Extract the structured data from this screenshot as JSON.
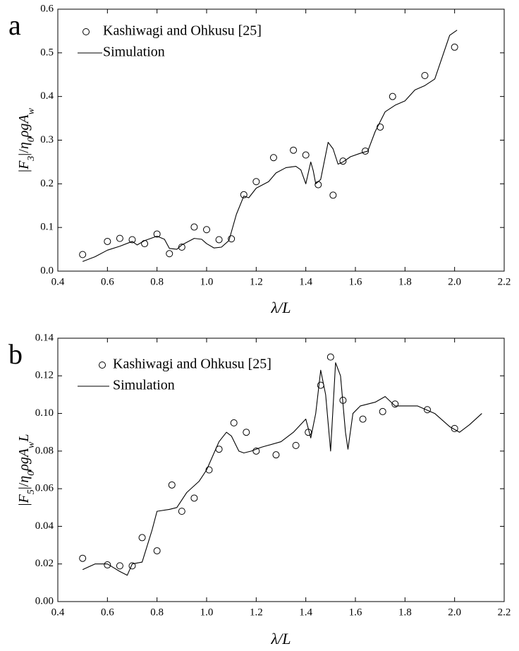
{
  "chart_data": [
    {
      "type": "line",
      "label": "a",
      "xlabel": [
        [
          "λ/L",
          "i"
        ]
      ],
      "ylabel": [
        [
          "|",
          ""
        ],
        [
          "F",
          "i"
        ],
        [
          "3",
          "sub"
        ],
        [
          "|/",
          ""
        ],
        [
          "η",
          "i"
        ],
        [
          "0",
          "sub"
        ],
        [
          "ρg",
          "i"
        ],
        [
          "A",
          "i"
        ],
        [
          "w",
          "sub"
        ]
      ],
      "xlim": [
        0.4,
        2.2
      ],
      "ylim": [
        0,
        0.6
      ],
      "xticks": [
        0.4,
        0.6,
        0.8,
        {
          "value": 1,
          "label": "1.0"
        },
        1.2,
        1.4,
        1.6,
        1.8,
        {
          "value": 2,
          "label": "2.0"
        },
        2.2
      ],
      "yticks": [
        {
          "value": 0,
          "label": "0.0"
        },
        0.1,
        0.2,
        0.3,
        0.4,
        0.5,
        0.6
      ],
      "legend": "upper left",
      "series": [
        {
          "name": "Kashiwagi and Ohkusu [25]",
          "color": "#000000",
          "style": "markers",
          "x": [
            0.5,
            0.6,
            0.65,
            0.7,
            0.75,
            0.8,
            0.85,
            0.9,
            0.95,
            1.0,
            1.05,
            1.1,
            1.15,
            1.2,
            1.27,
            1.35,
            1.4,
            1.45,
            1.51,
            1.55,
            1.64,
            1.7,
            1.75,
            1.88,
            2.0
          ],
          "values": [
            0.038,
            0.068,
            0.075,
            0.072,
            0.063,
            0.085,
            0.04,
            0.055,
            0.101,
            0.095,
            0.072,
            0.074,
            0.175,
            0.205,
            0.26,
            0.277,
            0.266,
            0.198,
            0.174,
            0.252,
            0.275,
            0.33,
            0.4,
            0.448,
            0.513
          ]
        },
        {
          "name": "Simulation",
          "color": "#000000",
          "style": "line",
          "x": [
            0.5,
            0.55,
            0.6,
            0.65,
            0.7,
            0.72,
            0.75,
            0.8,
            0.83,
            0.85,
            0.88,
            0.9,
            0.95,
            0.98,
            1.0,
            1.03,
            1.06,
            1.09,
            1.12,
            1.15,
            1.17,
            1.2,
            1.25,
            1.28,
            1.32,
            1.36,
            1.38,
            1.4,
            1.42,
            1.43,
            1.44,
            1.46,
            1.49,
            1.51,
            1.53,
            1.55,
            1.58,
            1.62,
            1.65,
            1.68,
            1.72,
            1.76,
            1.8,
            1.84,
            1.88,
            1.92,
            1.95,
            1.98,
            2.01
          ],
          "values": [
            0.022,
            0.033,
            0.048,
            0.057,
            0.068,
            0.06,
            0.07,
            0.08,
            0.073,
            0.052,
            0.05,
            0.06,
            0.075,
            0.073,
            0.063,
            0.053,
            0.055,
            0.07,
            0.13,
            0.172,
            0.168,
            0.19,
            0.205,
            0.225,
            0.237,
            0.24,
            0.232,
            0.2,
            0.25,
            0.23,
            0.2,
            0.21,
            0.295,
            0.28,
            0.245,
            0.25,
            0.262,
            0.27,
            0.275,
            0.32,
            0.365,
            0.38,
            0.39,
            0.415,
            0.425,
            0.44,
            0.49,
            0.54,
            0.552
          ]
        }
      ]
    },
    {
      "type": "line",
      "label": "b",
      "xlabel": [
        [
          "λ/L",
          "i"
        ]
      ],
      "ylabel": [
        [
          "|",
          ""
        ],
        [
          "F",
          "i"
        ],
        [
          "5",
          "sub"
        ],
        [
          "|/",
          ""
        ],
        [
          "η",
          "i"
        ],
        [
          "0",
          "sub"
        ],
        [
          "ρg",
          "i"
        ],
        [
          "A",
          "i"
        ],
        [
          "w",
          "sub"
        ],
        [
          "L",
          "i"
        ]
      ],
      "xlim": [
        0.4,
        2.2
      ],
      "ylim": [
        0,
        0.14
      ],
      "xticks": [
        0.4,
        0.6,
        0.8,
        {
          "value": 1,
          "label": "1.0"
        },
        1.2,
        1.4,
        1.6,
        1.8,
        {
          "value": 2,
          "label": "2.0"
        },
        2.2
      ],
      "yticks": [
        {
          "value": 0,
          "label": "0.00"
        },
        0.02,
        0.04,
        0.06,
        0.08,
        {
          "value": 0.1,
          "label": "0.10"
        },
        0.12,
        0.14
      ],
      "legend": "upper left",
      "series": [
        {
          "name": "Kashiwagi and Ohkusu [25]",
          "color": "#000000",
          "style": "markers",
          "x": [
            0.5,
            0.6,
            0.65,
            0.7,
            0.74,
            0.8,
            0.86,
            0.9,
            0.95,
            1.01,
            1.05,
            1.11,
            1.16,
            1.2,
            1.28,
            1.36,
            1.41,
            1.46,
            1.5,
            1.55,
            1.63,
            1.71,
            1.76,
            1.89,
            2.0
          ],
          "values": [
            0.023,
            0.0195,
            0.019,
            0.019,
            0.034,
            0.027,
            0.062,
            0.048,
            0.055,
            0.07,
            0.081,
            0.095,
            0.09,
            0.08,
            0.078,
            0.083,
            0.09,
            0.115,
            0.13,
            0.107,
            0.097,
            0.101,
            0.105,
            0.102,
            0.092
          ]
        },
        {
          "name": "Simulation",
          "color": "#000000",
          "style": "line",
          "x": [
            0.5,
            0.55,
            0.6,
            0.65,
            0.68,
            0.7,
            0.74,
            0.78,
            0.8,
            0.85,
            0.88,
            0.92,
            0.97,
            1.0,
            1.05,
            1.08,
            1.1,
            1.13,
            1.15,
            1.18,
            1.22,
            1.3,
            1.35,
            1.4,
            1.42,
            1.44,
            1.46,
            1.48,
            1.5,
            1.52,
            1.54,
            1.56,
            1.57,
            1.59,
            1.62,
            1.68,
            1.72,
            1.76,
            1.85,
            1.92,
            1.98,
            2.02,
            2.06,
            2.11
          ],
          "values": [
            0.017,
            0.02,
            0.02,
            0.016,
            0.014,
            0.02,
            0.021,
            0.038,
            0.048,
            0.049,
            0.05,
            0.058,
            0.064,
            0.07,
            0.085,
            0.09,
            0.088,
            0.08,
            0.079,
            0.08,
            0.082,
            0.085,
            0.09,
            0.097,
            0.087,
            0.1,
            0.123,
            0.11,
            0.08,
            0.127,
            0.12,
            0.09,
            0.081,
            0.1,
            0.104,
            0.106,
            0.109,
            0.104,
            0.104,
            0.1,
            0.093,
            0.09,
            0.094,
            0.1
          ]
        }
      ]
    }
  ]
}
